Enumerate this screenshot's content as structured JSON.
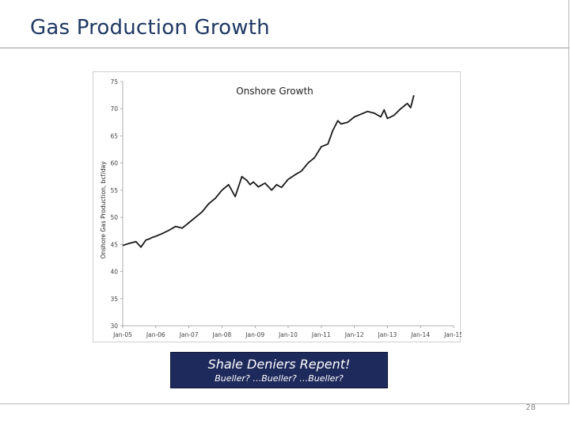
{
  "slide": {
    "title": "Gas Production Growth",
    "page_number": "28"
  },
  "callout": {
    "headline": "Shale Deniers Repent!",
    "subline": "Bueller? …Bueller? …Bueller?"
  },
  "colors": {
    "title": "#1f3864",
    "callout_bg": "#1f2a5c",
    "line": "#1a1a1a"
  },
  "chart_data": {
    "type": "line",
    "title": "Onshore Growth",
    "xlabel": "",
    "ylabel": "Onshore Gas Production, bcf/day",
    "ylim": [
      30,
      75
    ],
    "yticks": [
      30,
      35,
      40,
      45,
      50,
      55,
      60,
      65,
      70,
      75
    ],
    "xtick_labels": [
      "Jan-05",
      "Jan-06",
      "Jan-07",
      "Jan-08",
      "Jan-09",
      "Jan-10",
      "Jan-11",
      "Jan-12",
      "Jan-13",
      "Jan-14",
      "Jan-15"
    ],
    "xlim": [
      2005,
      2015
    ],
    "grid": false,
    "series": [
      {
        "name": "Onshore Gas Production",
        "x": [
          2005.0,
          2005.2,
          2005.4,
          2005.55,
          2005.7,
          2005.8,
          2005.9,
          2006.0,
          2006.2,
          2006.4,
          2006.6,
          2006.8,
          2007.0,
          2007.2,
          2007.4,
          2007.6,
          2007.8,
          2008.0,
          2008.2,
          2008.4,
          2008.6,
          2008.75,
          2008.85,
          2008.95,
          2009.1,
          2009.3,
          2009.5,
          2009.65,
          2009.8,
          2010.0,
          2010.2,
          2010.4,
          2010.6,
          2010.8,
          2011.0,
          2011.2,
          2011.35,
          2011.5,
          2011.6,
          2011.8,
          2012.0,
          2012.2,
          2012.4,
          2012.6,
          2012.8,
          2012.9,
          2013.0,
          2013.2,
          2013.4,
          2013.6,
          2013.7,
          2013.8
        ],
        "values": [
          44.8,
          45.2,
          45.5,
          44.5,
          45.8,
          46.0,
          46.3,
          46.5,
          47.0,
          47.6,
          48.3,
          48.0,
          49.0,
          50.0,
          51.0,
          52.5,
          53.5,
          55.0,
          56.0,
          53.8,
          57.5,
          56.8,
          56.0,
          56.5,
          55.6,
          56.3,
          55.0,
          56.0,
          55.5,
          57.0,
          57.8,
          58.5,
          60.0,
          61.0,
          63.0,
          63.5,
          66.0,
          67.8,
          67.2,
          67.5,
          68.5,
          69.0,
          69.5,
          69.2,
          68.5,
          69.8,
          68.2,
          68.8,
          70.0,
          71.0,
          70.2,
          72.5
        ]
      }
    ]
  }
}
